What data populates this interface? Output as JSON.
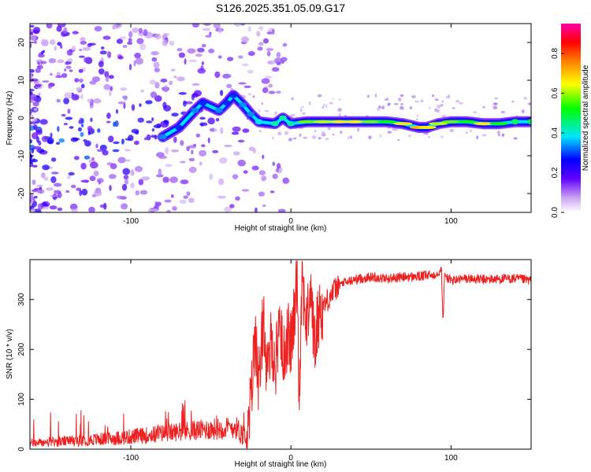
{
  "title": "S126.2025.351.05.09.G17",
  "chart_data": [
    {
      "type": "heatmap",
      "title": "S126.2025.351.05.09.G17",
      "xlabel": "Height of straight line (km)",
      "ylabel": "Frequency (Hz)",
      "xlim": [
        -163,
        150
      ],
      "ylim": [
        -25,
        25
      ],
      "x_ticks": [
        -100,
        0,
        100
      ],
      "x_tick_labels": [
        "-100",
        "0",
        "100"
      ],
      "y_ticks": [
        -20,
        -10,
        0,
        10,
        20
      ],
      "y_tick_labels": [
        "-20",
        "-10",
        "0",
        "10",
        "20"
      ],
      "colorbar": {
        "label": "Normalized spectral amplitude",
        "range": [
          0,
          0.95
        ],
        "ticks": [
          0.0,
          0.2,
          0.4,
          0.6,
          0.8
        ],
        "tick_labels": [
          "0.0",
          "0.2",
          "0.4",
          "0.6",
          "0.8"
        ],
        "colors": [
          "#ffffff",
          "#7a00ff",
          "#0000ff",
          "#00ffff",
          "#00ff00",
          "#ffff00",
          "#ff8000",
          "#ff0000",
          "#ff00aa"
        ]
      },
      "ridge": [
        {
          "x": -80,
          "y": -5,
          "a": 0.35
        },
        {
          "x": -70,
          "y": -2.5,
          "a": 0.3
        },
        {
          "x": -60,
          "y": 2,
          "a": 0.35
        },
        {
          "x": -55,
          "y": 4,
          "a": 0.3
        },
        {
          "x": -45,
          "y": 2,
          "a": 0.35
        },
        {
          "x": -40,
          "y": 4,
          "a": 0.3
        },
        {
          "x": -36,
          "y": 6,
          "a": 0.3
        },
        {
          "x": -30,
          "y": 3.5,
          "a": 0.35
        },
        {
          "x": -25,
          "y": 1,
          "a": 0.35
        },
        {
          "x": -20,
          "y": -1,
          "a": 0.4
        },
        {
          "x": -10,
          "y": -1.5,
          "a": 0.45
        },
        {
          "x": -5,
          "y": 0,
          "a": 0.45
        },
        {
          "x": 0,
          "y": -1.5,
          "a": 0.45
        },
        {
          "x": 10,
          "y": -1,
          "a": 0.6
        },
        {
          "x": 20,
          "y": -1,
          "a": 0.65
        },
        {
          "x": 30,
          "y": -1,
          "a": 0.7
        },
        {
          "x": 40,
          "y": -1,
          "a": 0.7
        },
        {
          "x": 50,
          "y": -1,
          "a": 0.6
        },
        {
          "x": 60,
          "y": -1,
          "a": 0.55
        },
        {
          "x": 70,
          "y": -1.5,
          "a": 0.7
        },
        {
          "x": 80,
          "y": -2.5,
          "a": 0.75
        },
        {
          "x": 85,
          "y": -2.5,
          "a": 0.7
        },
        {
          "x": 92,
          "y": -1.5,
          "a": 0.65
        },
        {
          "x": 100,
          "y": -1,
          "a": 0.6
        },
        {
          "x": 110,
          "y": -1,
          "a": 0.55
        },
        {
          "x": 120,
          "y": -1.5,
          "a": 0.7
        },
        {
          "x": 130,
          "y": -1.5,
          "a": 0.55
        },
        {
          "x": 140,
          "y": -1,
          "a": 0.5
        },
        {
          "x": 150,
          "y": -1,
          "a": 0.5
        }
      ]
    },
    {
      "type": "line",
      "xlabel": "Height of straight line (km)",
      "ylabel": "SNR (10 * v/v)",
      "xlim": [
        -163,
        150
      ],
      "ylim": [
        0,
        380
      ],
      "x_ticks": [
        -100,
        0,
        100
      ],
      "x_tick_labels": [
        "-100",
        "0",
        "100"
      ],
      "y_ticks": [
        0,
        100,
        200,
        300
      ],
      "y_tick_labels": [
        "0",
        "100",
        "200",
        "300"
      ],
      "series": [
        {
          "name": "SNR",
          "color": "#ee2020",
          "x": [
            -163,
            -150,
            -140,
            -130,
            -120,
            -110,
            -100,
            -90,
            -80,
            -70,
            -60,
            -50,
            -40,
            -35,
            -30,
            -27,
            -25,
            -22,
            -20,
            -17,
            -15,
            -12,
            -10,
            -7,
            -5,
            -2,
            0,
            2,
            4,
            5,
            7,
            10,
            12,
            15,
            17,
            20,
            25,
            30,
            40,
            50,
            60,
            70,
            80,
            90,
            94,
            95,
            96,
            100,
            110,
            120,
            130,
            140,
            150
          ],
          "values": [
            12,
            14,
            16,
            18,
            20,
            22,
            25,
            28,
            32,
            35,
            38,
            40,
            42,
            45,
            30,
            20,
            100,
            240,
            110,
            280,
            130,
            230,
            150,
            270,
            180,
            230,
            210,
            260,
            370,
            95,
            350,
            240,
            330,
            200,
            270,
            285,
            310,
            330,
            340,
            345,
            342,
            345,
            346,
            350,
            360,
            255,
            348,
            338,
            342,
            340,
            341,
            342,
            338
          ]
        }
      ]
    }
  ]
}
